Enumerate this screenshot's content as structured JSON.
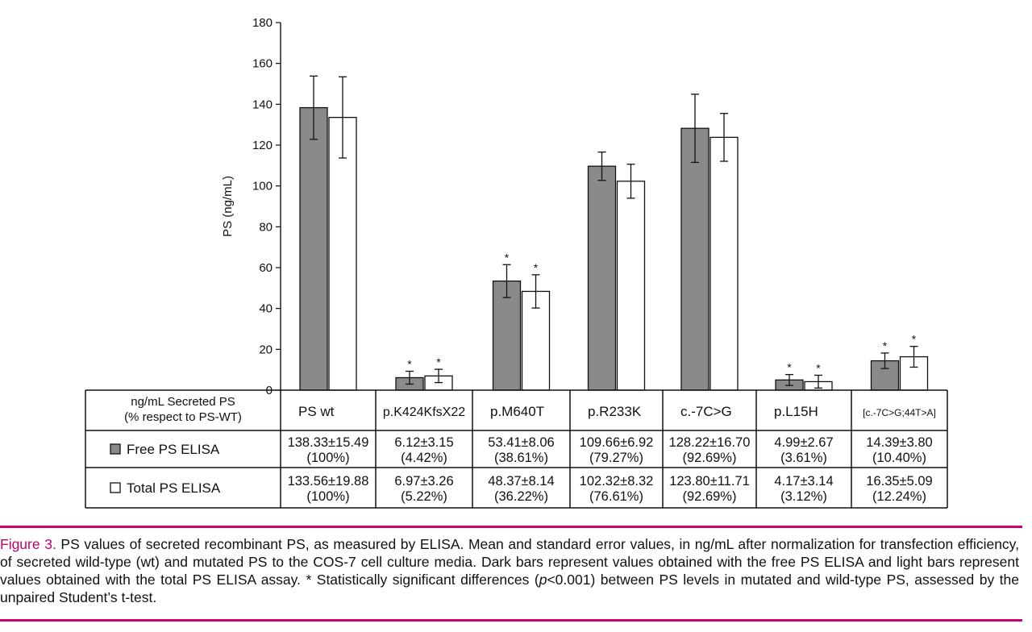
{
  "chart_data": {
    "type": "bar",
    "ylabel": "PS (ng/mL)",
    "ylim": [
      0,
      180
    ],
    "yticks": [
      0,
      20,
      40,
      60,
      80,
      100,
      120,
      140,
      160,
      180
    ],
    "categories": [
      "PS wt",
      "p.K424KfsX22",
      "p.M640T",
      "p.R233K",
      "c.-7C>G",
      "p.L15H",
      "[c.-7C>G;44T>A]"
    ],
    "series": [
      {
        "name": "Free PS ELISA",
        "color": "#8a8a8a",
        "values": [
          138.33,
          6.12,
          53.41,
          109.66,
          128.22,
          4.99,
          14.39
        ],
        "errors": [
          15.49,
          3.15,
          8.06,
          6.92,
          16.7,
          2.67,
          3.8
        ],
        "significant": [
          false,
          true,
          true,
          false,
          false,
          true,
          true
        ]
      },
      {
        "name": "Total PS ELISA",
        "color": "#ffffff",
        "values": [
          133.56,
          6.97,
          48.37,
          102.32,
          123.8,
          4.17,
          16.35
        ],
        "errors": [
          19.88,
          3.26,
          8.14,
          8.32,
          11.71,
          3.14,
          5.09
        ],
        "significant": [
          false,
          true,
          true,
          false,
          false,
          true,
          true
        ]
      }
    ],
    "significance_marker": "*"
  },
  "table": {
    "header_line1": "ng/mL Secreted PS",
    "header_line2": "(% respect to PS-WT)",
    "columns": [
      "PS wt",
      "p.K424KfsX22",
      "p.M640T",
      "p.R233K",
      "c.-7C>G",
      "p.L15H",
      "[c.-7C>G;44T>A]"
    ],
    "rows": [
      {
        "label": "Free PS ELISA",
        "values": [
          "138.33±15.49",
          "6.12±3.15",
          "53.41±8.06",
          "109.66±6.92",
          "128.22±16.70",
          "4.99±2.67",
          "14.39±3.80"
        ],
        "percents": [
          "(100%)",
          "(4.42%)",
          "(38.61%)",
          "(79.27%)",
          "(92.69%)",
          "(3.61%)",
          "(10.40%)"
        ]
      },
      {
        "label": "Total PS ELISA",
        "values": [
          "133.56±19.88",
          "6.97±3.26",
          "48.37±8.14",
          "102.32±8.32",
          "123.80±11.71",
          "4.17±3.14",
          "16.35±5.09"
        ],
        "percents": [
          "(100%)",
          "(5.22%)",
          "(36.22%)",
          "(76.61%)",
          "(92.69%)",
          "(3.12%)",
          "(12.24%)"
        ]
      }
    ]
  },
  "caption": {
    "figure_label": "Figure 3.",
    "text_part1": " PS values of secreted recombinant PS, as measured by ELISA. Mean and standard error values, in ng/mL after normalization for transfection efficiency, of secreted wild-type (wt) and mutated PS to the COS-7 cell culture media. Dark bars represent values obtained with the free PS ELISA and light bars represent values obtained with the total PS ELISA assay. * Statistically significant differences (",
    "p_symbol": "p",
    "text_part2": "<0.001) between PS levels in mutated and wild-type PS, assessed by the unpaired Student’s t-test."
  },
  "colors": {
    "accent": "#d0006f",
    "figure_label": "#c4006a",
    "free_bar": "#8a8a8a",
    "total_bar": "#ffffff"
  }
}
